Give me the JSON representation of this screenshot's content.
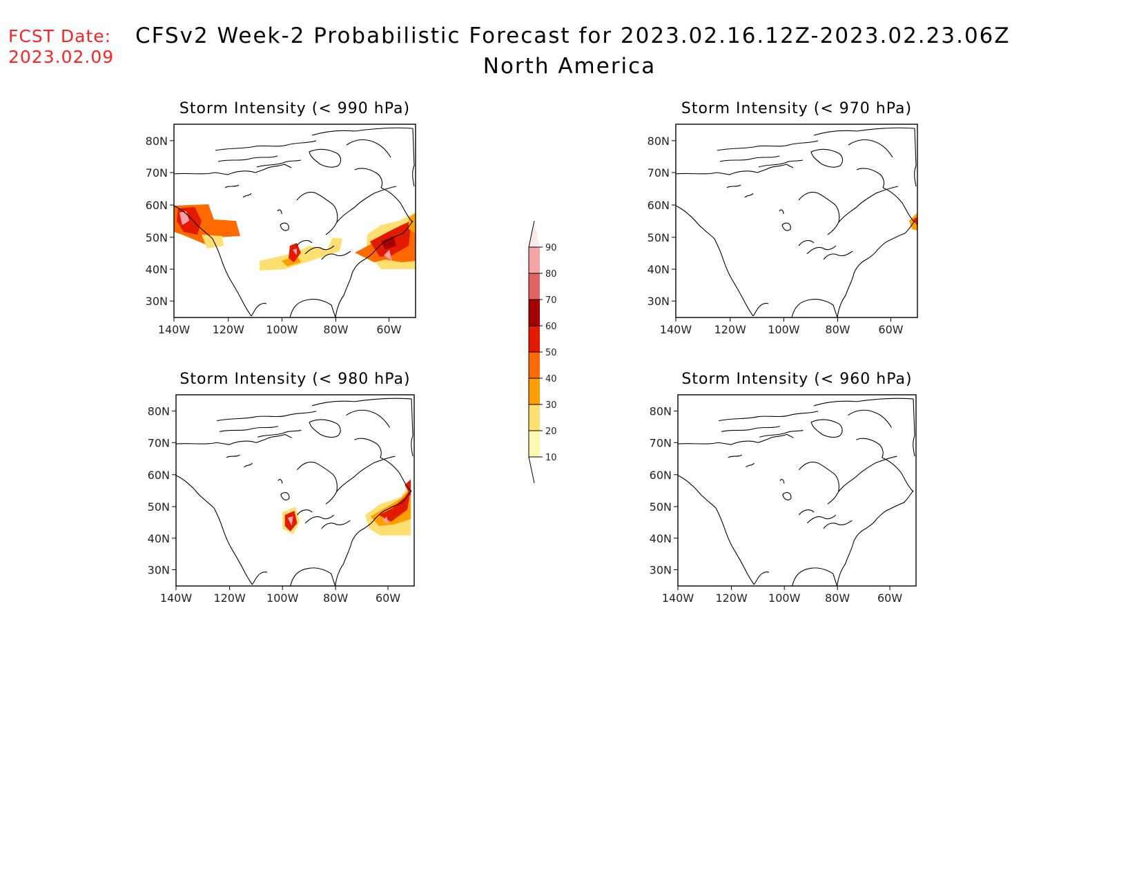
{
  "header": {
    "fcst_label": "FCST Date:",
    "fcst_date": "2023.02.09",
    "title": "CFSv2 Week-2 Probabilistic Forecast for 2023.02.16.12Z-2023.02.23.06Z",
    "subtitle": "North America"
  },
  "panels": [
    {
      "title": "Storm Intensity (< 990 hPa)"
    },
    {
      "title": "Storm Intensity (< 970 hPa)"
    },
    {
      "title": "Storm Intensity (< 980 hPa)"
    },
    {
      "title": "Storm Intensity (< 960 hPa)"
    }
  ],
  "axes": {
    "lat_ticks": [
      "80N",
      "70N",
      "60N",
      "50N",
      "40N",
      "30N"
    ],
    "lon_ticks": [
      "140W",
      "120W",
      "100W",
      "80W",
      "60W"
    ]
  },
  "colorbar": {
    "labels": [
      "90",
      "80",
      "70",
      "60",
      "50",
      "40",
      "30",
      "20",
      "10"
    ],
    "colors": [
      "#fde8ea",
      "#f4a3a7",
      "#e06464",
      "#a50000",
      "#e31a00",
      "#ff6a00",
      "#ff9e00",
      "#ffdf70",
      "#fff8b0"
    ]
  }
}
